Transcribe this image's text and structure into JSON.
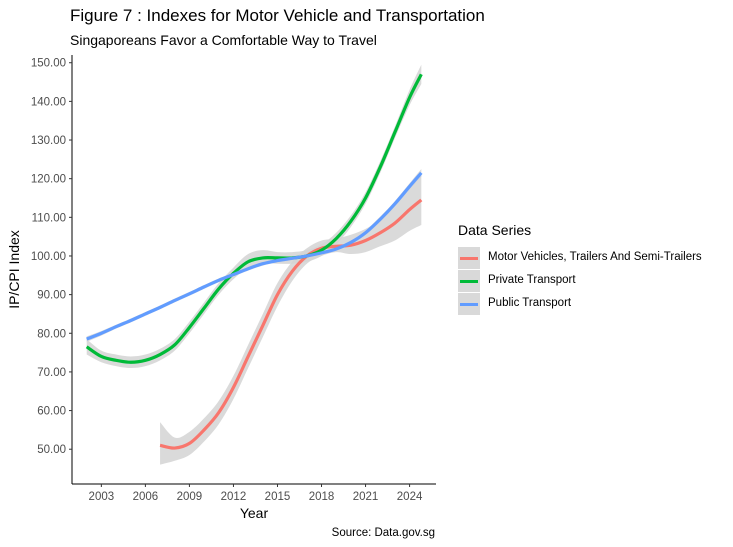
{
  "title": "Figure 7 : Indexes for Motor Vehicle and Transportation",
  "subtitle": "Singaporeans Favor a Comfortable Way to Travel",
  "caption": "Source: Data.gov.sg",
  "colors": {
    "motor": "#F8766D",
    "private": "#00BA38",
    "public": "#619CFF",
    "band": "#d3d3d3"
  },
  "chart_data": {
    "type": "line",
    "title": "Figure 7 : Indexes for Motor Vehicle and Transportation",
    "subtitle": "Singaporeans Favor a Comfortable Way to Travel",
    "xlabel": "Year",
    "ylabel": "IP/CPI Index",
    "xlim": [
      2001,
      2025.8
    ],
    "ylim": [
      41,
      152
    ],
    "xticks": [
      2003,
      2006,
      2009,
      2012,
      2015,
      2018,
      2021,
      2024
    ],
    "xtick_labels": [
      "2003",
      "2006",
      "2009",
      "2012",
      "2015",
      "2018",
      "2021",
      "2024"
    ],
    "yticks": [
      50,
      60,
      70,
      80,
      90,
      100,
      110,
      120,
      130,
      140,
      150
    ],
    "ytick_labels": [
      "50.00",
      "60.00",
      "70.00",
      "80.00",
      "90.00",
      "100.00",
      "110.00",
      "120.00",
      "130.00",
      "140.00",
      "150.00"
    ],
    "grid": false,
    "legend_title": "Data Series",
    "legend_position": "right",
    "series": [
      {
        "name": "Motor Vehicles, Trailers And Semi-Trailers",
        "color": "#F8766D",
        "x": [
          2007,
          2008,
          2009,
          2010,
          2011,
          2012,
          2013,
          2014,
          2015,
          2016,
          2017,
          2018,
          2019,
          2020,
          2021,
          2022,
          2023,
          2024,
          2024.8
        ],
        "y": [
          51,
          50.3,
          51.5,
          55,
          59.5,
          66,
          74,
          82,
          90,
          96,
          100,
          102,
          102.5,
          102.8,
          104,
          106,
          108.5,
          112,
          114.5
        ],
        "band": [
          [
            46,
            57
          ],
          [
            47,
            53
          ],
          [
            48.5,
            54.5
          ],
          [
            52,
            58
          ],
          [
            56.5,
            62.5
          ],
          [
            63,
            69
          ],
          [
            71,
            77
          ],
          [
            79,
            85
          ],
          [
            87,
            93
          ],
          [
            93.5,
            98.5
          ],
          [
            98,
            102
          ],
          [
            100,
            104
          ],
          [
            101,
            104.5
          ],
          [
            100.5,
            105.5
          ],
          [
            101,
            107
          ],
          [
            102.5,
            109.5
          ],
          [
            104,
            113
          ],
          [
            106.5,
            117.5
          ],
          [
            108,
            121
          ]
        ]
      },
      {
        "name": "Private Transport",
        "color": "#00BA38",
        "x": [
          2002,
          2003,
          2004,
          2005,
          2006,
          2007,
          2008,
          2009,
          2010,
          2011,
          2012,
          2013,
          2014,
          2015,
          2016,
          2017,
          2018,
          2019,
          2020,
          2021,
          2022,
          2023,
          2024,
          2024.8
        ],
        "y": [
          76.5,
          74,
          73,
          72.5,
          73,
          74.5,
          77,
          81.5,
          86.5,
          91.5,
          95.5,
          98.5,
          99.5,
          99.5,
          99.5,
          100,
          101.5,
          104.5,
          109,
          115,
          123,
          132,
          141,
          147
        ],
        "band": [
          [
            74.5,
            78.5
          ],
          [
            72.5,
            75.5
          ],
          [
            71.5,
            74.5
          ],
          [
            71,
            74
          ],
          [
            71.5,
            74.5
          ],
          [
            73,
            76
          ],
          [
            75.5,
            78.5
          ],
          [
            80,
            83
          ],
          [
            85,
            88
          ],
          [
            90,
            93
          ],
          [
            94,
            97
          ],
          [
            97,
            100.5
          ],
          [
            98,
            101.5
          ],
          [
            98,
            101
          ],
          [
            98,
            101
          ],
          [
            98.5,
            101.5
          ],
          [
            100,
            103
          ],
          [
            103,
            106
          ],
          [
            107.5,
            110.5
          ],
          [
            113.5,
            116.5
          ],
          [
            121.5,
            124.5
          ],
          [
            130.5,
            133.5
          ],
          [
            139,
            143
          ],
          [
            144.5,
            149.5
          ]
        ]
      },
      {
        "name": "Public Transport",
        "color": "#619CFF",
        "x": [
          2002,
          2003,
          2004,
          2005,
          2006,
          2007,
          2008,
          2009,
          2010,
          2011,
          2012,
          2013,
          2014,
          2015,
          2016,
          2017,
          2018,
          2019,
          2020,
          2021,
          2022,
          2023,
          2024,
          2024.8
        ],
        "y": [
          78.5,
          80,
          81.7,
          83.3,
          85,
          86.7,
          88.5,
          90.2,
          92,
          93.7,
          95.2,
          96.7,
          98,
          98.8,
          99.4,
          100,
          100.8,
          101.8,
          103.5,
          106,
          109.5,
          113.5,
          118,
          121.5
        ],
        "band": [
          [
            77.8,
            79.2
          ],
          [
            79.4,
            80.6
          ],
          [
            81.2,
            82.2
          ],
          [
            82.8,
            83.8
          ],
          [
            84.5,
            85.5
          ],
          [
            86.2,
            87.2
          ],
          [
            88,
            89
          ],
          [
            89.7,
            90.7
          ],
          [
            91.5,
            92.5
          ],
          [
            93.2,
            94.2
          ],
          [
            94.7,
            95.7
          ],
          [
            96.2,
            97.2
          ],
          [
            97.5,
            98.5
          ],
          [
            98.3,
            99.3
          ],
          [
            98.9,
            99.9
          ],
          [
            99.5,
            100.5
          ],
          [
            100.3,
            101.3
          ],
          [
            101.3,
            102.3
          ],
          [
            103,
            104
          ],
          [
            105.4,
            106.6
          ],
          [
            108.8,
            110.2
          ],
          [
            112.8,
            114.2
          ],
          [
            117.2,
            118.8
          ],
          [
            120.5,
            122.5
          ]
        ]
      }
    ]
  }
}
